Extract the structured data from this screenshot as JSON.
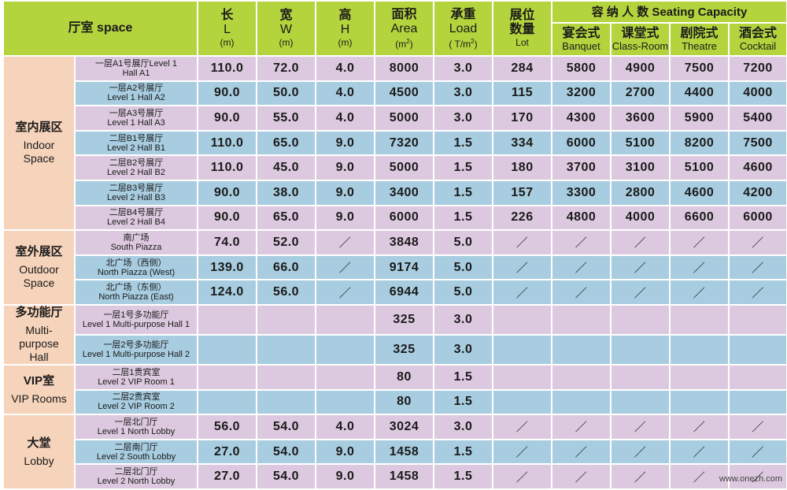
{
  "header": {
    "space": "厅室 space",
    "length": {
      "zh": "长",
      "en": "L",
      "unit": "(m)"
    },
    "width": {
      "zh": "宽",
      "en": "W",
      "unit": "(m)"
    },
    "height": {
      "zh": "高",
      "en": "H",
      "unit": "(m)"
    },
    "area": {
      "zh": "面积",
      "en": "Area",
      "unit_pre": "(m",
      "unit_sup": "2",
      "unit_post": ")"
    },
    "load": {
      "zh": "承重",
      "en": "Load",
      "unit_pre": "( T/m",
      "unit_sup": "2",
      "unit_post": ")"
    },
    "lot": {
      "zh1": "展位",
      "zh2": "数量",
      "en": "Lot"
    },
    "capacity": "容 纳 人 数  Seating Capacity",
    "banquet": {
      "zh": "宴会式",
      "en": "Banquet"
    },
    "classroom": {
      "zh": "课堂式",
      "en": "Class-Room"
    },
    "theatre": {
      "zh": "剧院式",
      "en": "Theatre"
    },
    "cocktail": {
      "zh": "酒会式",
      "en": "Cocktail"
    }
  },
  "groups": {
    "indoor": {
      "zh": "室内展区",
      "en1": "Indoor",
      "en2": "Space"
    },
    "outdoor": {
      "zh": "室外展区",
      "en1": "Outdoor",
      "en2": "Space"
    },
    "multi": {
      "zh": "多功能厅",
      "en1": "Multi-",
      "en2": "purpose",
      "en3": "Hall"
    },
    "vip": {
      "zh": "VIP室",
      "en1": "VIP Rooms"
    },
    "lobby": {
      "zh": "大堂",
      "en1": "Lobby"
    }
  },
  "rows": [
    {
      "n1": "一层A1号展厅Level 1",
      "n2": "Hall A1",
      "l": "110.0",
      "w": "72.0",
      "h": "4.0",
      "area": "8000",
      "load": "3.0",
      "lot": "284",
      "banquet": "5800",
      "classroom": "4900",
      "theatre": "7500",
      "cocktail": "7200"
    },
    {
      "n1": "一层A2号展厅",
      "n2": "Level 1 Hall A2",
      "l": "90.0",
      "w": "50.0",
      "h": "4.0",
      "area": "4500",
      "load": "3.0",
      "lot": "115",
      "banquet": "3200",
      "classroom": "2700",
      "theatre": "4400",
      "cocktail": "4000"
    },
    {
      "n1": "一层A3号展厅",
      "n2": "Level 1 Hall A3",
      "l": "90.0",
      "w": "55.0",
      "h": "4.0",
      "area": "5000",
      "load": "3.0",
      "lot": "170",
      "banquet": "4300",
      "classroom": "3600",
      "theatre": "5900",
      "cocktail": "5400"
    },
    {
      "n1": "二层B1号展厅",
      "n2": "Level 2 Hall B1",
      "l": "110.0",
      "w": "65.0",
      "h": "9.0",
      "area": "7320",
      "load": "1.5",
      "lot": "334",
      "banquet": "6000",
      "classroom": "5100",
      "theatre": "8200",
      "cocktail": "7500"
    },
    {
      "n1": "二层B2号展厅",
      "n2": "Level 2 Hall B2",
      "l": "110.0",
      "w": "45.0",
      "h": "9.0",
      "area": "5000",
      "load": "1.5",
      "lot": "180",
      "banquet": "3700",
      "classroom": "3100",
      "theatre": "5100",
      "cocktail": "4600"
    },
    {
      "n1": "二层B3号展厅",
      "n2": "Level 2 Hall B3",
      "l": "90.0",
      "w": "38.0",
      "h": "9.0",
      "area": "3400",
      "load": "1.5",
      "lot": "157",
      "banquet": "3300",
      "classroom": "2800",
      "theatre": "4600",
      "cocktail": "4200"
    },
    {
      "n1": "二层B4号展厅",
      "n2": "Level 2 Hall B4",
      "l": "90.0",
      "w": "65.0",
      "h": "9.0",
      "area": "6000",
      "load": "1.5",
      "lot": "226",
      "banquet": "4800",
      "classroom": "4000",
      "theatre": "6600",
      "cocktail": "6000"
    },
    {
      "n1": "南广场",
      "n2": "South Piazza",
      "l": "74.0",
      "w": "52.0",
      "h": "／",
      "area": "3848",
      "load": "5.0",
      "lot": "／",
      "banquet": "／",
      "classroom": "／",
      "theatre": "／",
      "cocktail": "／"
    },
    {
      "n1": "北广场（西侧）",
      "n2": "North Piazza (West)",
      "l": "139.0",
      "w": "66.0",
      "h": "／",
      "area": "9174",
      "load": "5.0",
      "lot": "／",
      "banquet": "／",
      "classroom": "／",
      "theatre": "／",
      "cocktail": "／"
    },
    {
      "n1": "北广场（东侧）",
      "n2": "North Piazza (East)",
      "l": "124.0",
      "w": "56.0",
      "h": "／",
      "area": "6944",
      "load": "5.0",
      "lot": "／",
      "banquet": "／",
      "classroom": "／",
      "theatre": "／",
      "cocktail": "／"
    },
    {
      "n1": "一层1号多功能厅",
      "n2": "Level 1 Multi-purpose Hall 1",
      "l": "",
      "w": "",
      "h": "",
      "area": "325",
      "load": "3.0",
      "lot": "",
      "banquet": "",
      "classroom": "",
      "theatre": "",
      "cocktail": ""
    },
    {
      "n1": "一层2号多功能厅",
      "n2": "Level 1 Multi-purpose Hall 2",
      "l": "",
      "w": "",
      "h": "",
      "area": "325",
      "load": "3.0",
      "lot": "",
      "banquet": "",
      "classroom": "",
      "theatre": "",
      "cocktail": ""
    },
    {
      "n1": "二层1贵宾室",
      "n2": "Level 2 VIP Room 1",
      "l": "",
      "w": "",
      "h": "",
      "area": "80",
      "load": "1.5",
      "lot": "",
      "banquet": "",
      "classroom": "",
      "theatre": "",
      "cocktail": ""
    },
    {
      "n1": "二层2贵宾室",
      "n2": "Level 2 VIP Room 2",
      "l": "",
      "w": "",
      "h": "",
      "area": "80",
      "load": "1.5",
      "lot": "",
      "banquet": "",
      "classroom": "",
      "theatre": "",
      "cocktail": ""
    },
    {
      "n1": "一层北门厅",
      "n2": "Level 1 North Lobby",
      "l": "56.0",
      "w": "54.0",
      "h": "4.0",
      "area": "3024",
      "load": "3.0",
      "lot": "／",
      "banquet": "／",
      "classroom": "／",
      "theatre": "／",
      "cocktail": "／"
    },
    {
      "n1": "二层南门厅",
      "n2": "Level 2 South Lobby",
      "l": "27.0",
      "w": "54.0",
      "h": "9.0",
      "area": "1458",
      "load": "1.5",
      "lot": "／",
      "banquet": "／",
      "classroom": "／",
      "theatre": "／",
      "cocktail": "／"
    },
    {
      "n1": "二层北门厅",
      "n2": "Level 2 North Lobby",
      "l": "27.0",
      "w": "54.0",
      "h": "9.0",
      "area": "1458",
      "load": "1.5",
      "lot": "／",
      "banquet": "／",
      "classroom": "／",
      "theatre": "／",
      "cocktail": "／"
    }
  ],
  "watermark": "www.onezh.com",
  "colors": {
    "header": "#b4d43e",
    "group": "#f6d3bb",
    "row_purple": "#ddc9df",
    "row_blue": "#a8cde0"
  }
}
